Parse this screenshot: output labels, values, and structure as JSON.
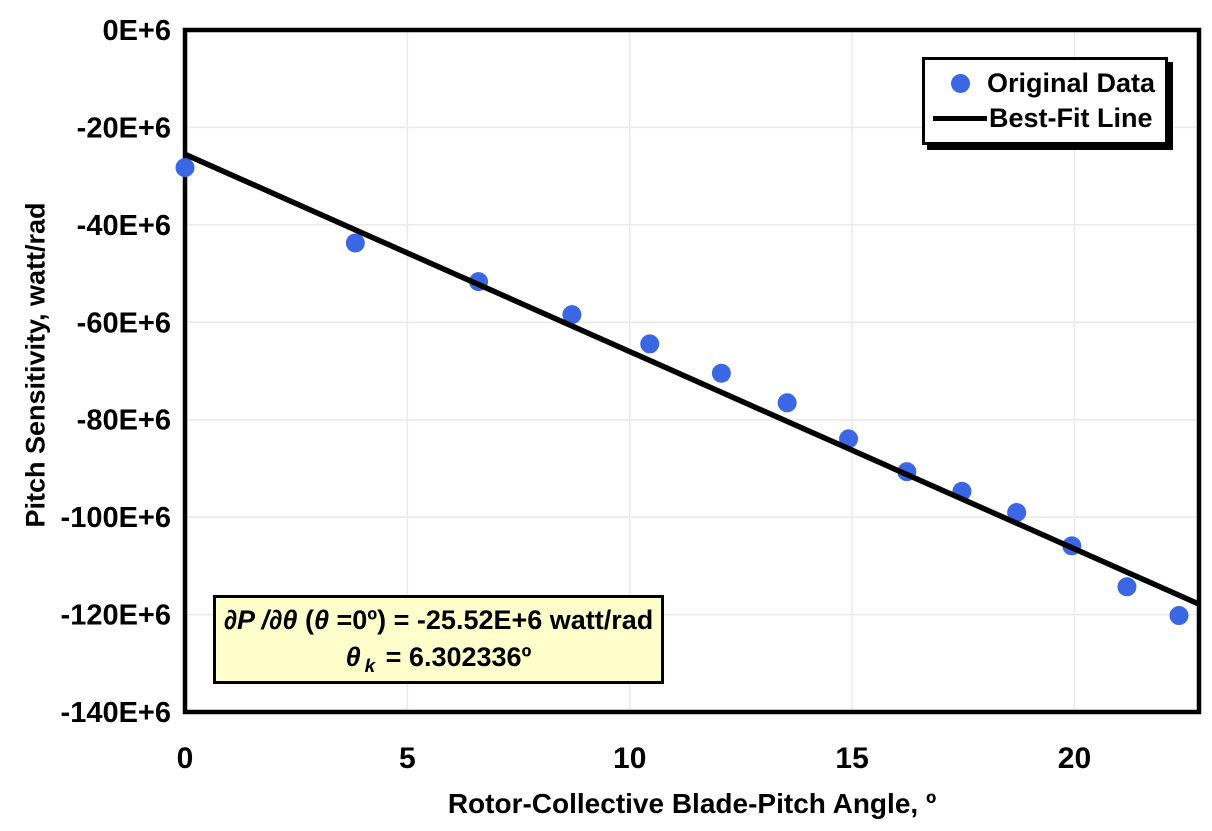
{
  "figure": {
    "background": "#FFFFFF",
    "frame_color": "#000000",
    "grid_color": "#EAEAEA",
    "marker_color": "#3A67E3",
    "fit_line_color": "#000000",
    "annotation_bg": "#FFFFCC"
  },
  "chart_data": {
    "type": "scatter",
    "title": "",
    "xlabel": "Rotor-Collective Blade-Pitch Angle, º",
    "ylabel": "Pitch Sensitivity, watt/rad",
    "xlim": [
      0,
      22.8
    ],
    "ylim": [
      -140,
      0
    ],
    "y_unit_label": "E+6",
    "grid": true,
    "legend_position": "top-right",
    "x_ticks": [
      {
        "value": 0,
        "label": "0"
      },
      {
        "value": 5,
        "label": "5"
      },
      {
        "value": 10,
        "label": "10"
      },
      {
        "value": 15,
        "label": "15"
      },
      {
        "value": 20,
        "label": "20"
      }
    ],
    "y_ticks": [
      {
        "value": 0,
        "label": "0E+6"
      },
      {
        "value": -20,
        "label": "-20E+6"
      },
      {
        "value": -40,
        "label": "-40E+6"
      },
      {
        "value": -60,
        "label": "-60E+6"
      },
      {
        "value": -80,
        "label": "-80E+6"
      },
      {
        "value": -100,
        "label": "-100E+6"
      },
      {
        "value": -120,
        "label": "-120E+6"
      },
      {
        "value": -140,
        "label": "-140E+6"
      }
    ],
    "series": [
      {
        "name": "Original Data",
        "kind": "scatter",
        "color": "#3A67E3",
        "marker_radius": 9.5,
        "points": [
          [
            0.0,
            -28.24
          ],
          [
            3.83,
            -43.73
          ],
          [
            6.6,
            -51.66
          ],
          [
            8.7,
            -58.44
          ],
          [
            10.45,
            -64.44
          ],
          [
            12.06,
            -70.46
          ],
          [
            13.54,
            -76.53
          ],
          [
            14.92,
            -83.94
          ],
          [
            16.23,
            -90.67
          ],
          [
            17.47,
            -94.71
          ],
          [
            18.7,
            -99.04
          ],
          [
            19.94,
            -105.9
          ],
          [
            21.18,
            -114.3
          ],
          [
            22.35,
            -120.2
          ]
        ]
      },
      {
        "name": "Best-Fit Line",
        "kind": "line",
        "color": "#000000",
        "stroke_width": 5.5,
        "points": [
          [
            0,
            -25.52
          ],
          [
            22.8,
            -117.85
          ]
        ]
      }
    ],
    "annotation": {
      "bg": "#FFFFCC",
      "line1_text": "∂P /∂θ (θ =0º) = -25.52E+6 watt/rad",
      "line2_text": "θ k = 6.302336º",
      "line1": [
        {
          "t": "∂P /∂θ",
          "s": "bi"
        },
        {
          "t": " (",
          "s": "b"
        },
        {
          "t": "θ",
          "s": "bi"
        },
        {
          "t": " =0º) = -25.52E+6 watt/rad",
          "s": "b"
        }
      ],
      "line2": [
        {
          "t": "θ",
          "s": "bi"
        },
        {
          "t": "k",
          "s": "bisub"
        },
        {
          "t": " = 6.302336º",
          "s": "b"
        }
      ]
    }
  }
}
